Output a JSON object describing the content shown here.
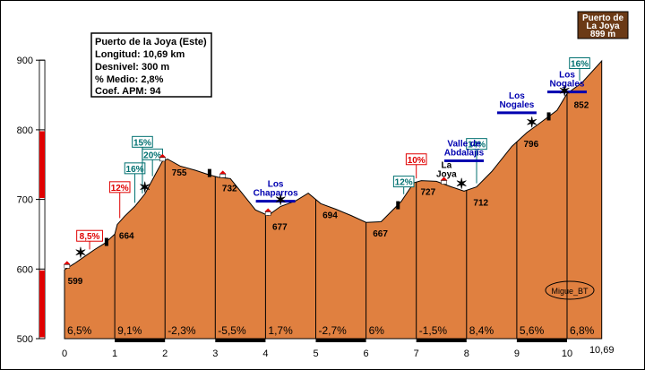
{
  "chart_data": {
    "type": "area",
    "xlabel": "",
    "ylabel": "",
    "ylim": [
      500,
      900
    ],
    "xlim": [
      0,
      10.69
    ],
    "x_ticks": [
      "0",
      "1",
      "2",
      "3",
      "4",
      "5",
      "6",
      "7",
      "8",
      "9",
      "10"
    ],
    "x_end_label": "10,69",
    "y_ticks": [
      "500",
      "600",
      "700",
      "800",
      "900"
    ],
    "fill_color": "#e08040",
    "profile": [
      {
        "x": 0.0,
        "y": 599
      },
      {
        "x": 0.2,
        "y": 608
      },
      {
        "x": 0.4,
        "y": 618
      },
      {
        "x": 0.6,
        "y": 628
      },
      {
        "x": 0.8,
        "y": 637
      },
      {
        "x": 1.0,
        "y": 650
      },
      {
        "x": 1.05,
        "y": 664
      },
      {
        "x": 1.2,
        "y": 676
      },
      {
        "x": 1.4,
        "y": 690
      },
      {
        "x": 1.6,
        "y": 708
      },
      {
        "x": 1.8,
        "y": 735
      },
      {
        "x": 1.95,
        "y": 755
      },
      {
        "x": 2.05,
        "y": 758
      },
      {
        "x": 2.3,
        "y": 748
      },
      {
        "x": 2.6,
        "y": 742
      },
      {
        "x": 2.85,
        "y": 736
      },
      {
        "x": 3.05,
        "y": 732
      },
      {
        "x": 3.3,
        "y": 730
      },
      {
        "x": 3.5,
        "y": 712
      },
      {
        "x": 3.8,
        "y": 685
      },
      {
        "x": 4.05,
        "y": 677
      },
      {
        "x": 4.3,
        "y": 690
      },
      {
        "x": 4.6,
        "y": 698
      },
      {
        "x": 4.85,
        "y": 709
      },
      {
        "x": 5.1,
        "y": 694
      },
      {
        "x": 5.4,
        "y": 686
      },
      {
        "x": 5.7,
        "y": 677
      },
      {
        "x": 6.0,
        "y": 667
      },
      {
        "x": 6.3,
        "y": 668
      },
      {
        "x": 6.7,
        "y": 697
      },
      {
        "x": 6.95,
        "y": 724
      },
      {
        "x": 7.1,
        "y": 727
      },
      {
        "x": 7.4,
        "y": 726
      },
      {
        "x": 7.7,
        "y": 718
      },
      {
        "x": 7.95,
        "y": 712
      },
      {
        "x": 8.2,
        "y": 718
      },
      {
        "x": 8.5,
        "y": 740
      },
      {
        "x": 8.9,
        "y": 776
      },
      {
        "x": 9.2,
        "y": 796
      },
      {
        "x": 9.5,
        "y": 812
      },
      {
        "x": 9.8,
        "y": 828
      },
      {
        "x": 10.0,
        "y": 852
      },
      {
        "x": 10.3,
        "y": 868
      },
      {
        "x": 10.69,
        "y": 899
      }
    ],
    "elevation_labels": [
      {
        "x": 0.03,
        "y": 599,
        "text": "599"
      },
      {
        "x": 1.05,
        "y": 664,
        "text": "664"
      },
      {
        "x": 2.1,
        "y": 755,
        "text": "755"
      },
      {
        "x": 3.1,
        "y": 732,
        "text": "732"
      },
      {
        "x": 4.1,
        "y": 677,
        "text": "677"
      },
      {
        "x": 5.1,
        "y": 694,
        "text": "694"
      },
      {
        "x": 6.1,
        "y": 667,
        "text": "667"
      },
      {
        "x": 7.05,
        "y": 727,
        "text": "727"
      },
      {
        "x": 8.1,
        "y": 712,
        "text": "712"
      },
      {
        "x": 9.1,
        "y": 796,
        "text": "796"
      },
      {
        "x": 10.1,
        "y": 852,
        "text": "852"
      }
    ],
    "segment_gradients": [
      "6,5%",
      "9,1%",
      "-2,3%",
      "-5,5%",
      "1,7%",
      "-2,7%",
      "6%",
      "-1,5%",
      "8,4%",
      "5,6%",
      "6,8%"
    ],
    "max_gradients": [
      {
        "x": 0.5,
        "y": 640,
        "text": "8,5%",
        "color": "#e00000"
      },
      {
        "x": 1.1,
        "y": 710,
        "text": "12%",
        "color": "#e00000"
      },
      {
        "x": 1.4,
        "y": 737,
        "text": "16%",
        "color": "#007070"
      },
      {
        "x": 1.75,
        "y": 757,
        "text": "20%",
        "color": "#007070"
      },
      {
        "x": 1.55,
        "y": 775,
        "text": "15%",
        "color": "#007070"
      },
      {
        "x": 6.75,
        "y": 718,
        "text": "12%",
        "color": "#007070"
      },
      {
        "x": 7.0,
        "y": 750,
        "text": "10%",
        "color": "#e00000"
      },
      {
        "x": 8.2,
        "y": 772,
        "text": "14%",
        "color": "#007070"
      },
      {
        "x": 10.25,
        "y": 888,
        "text": "16%",
        "color": "#007070"
      }
    ],
    "place_labels": [
      {
        "x": 4.2,
        "y": 718,
        "lines": [
          "Los",
          "Chaparros"
        ],
        "color": "#0000b0"
      },
      {
        "x": 7.95,
        "y": 776,
        "lines": [
          "Valle de",
          "Abdalajís"
        ],
        "color": "#0000b0"
      },
      {
        "x": 7.6,
        "y": 745,
        "lines": [
          "La",
          "Joya"
        ],
        "color": "#000000"
      },
      {
        "x": 9.0,
        "y": 845,
        "lines": [
          "Los",
          "Nogales"
        ],
        "color": "#0000b0"
      },
      {
        "x": 10.0,
        "y": 875,
        "lines": [
          "Los",
          "Nogales"
        ],
        "color": "#0000b0"
      }
    ],
    "info_box": [
      "Puerto de la Joya (Este)",
      "Longitud: 10,69 km",
      "Desnivel: 300 m",
      "% Medio: 2,8%",
      "Coef. APM: 94"
    ],
    "summit_box": [
      "Puerto de",
      "La Joya",
      "899 m"
    ],
    "signature": "Migue_BT"
  }
}
